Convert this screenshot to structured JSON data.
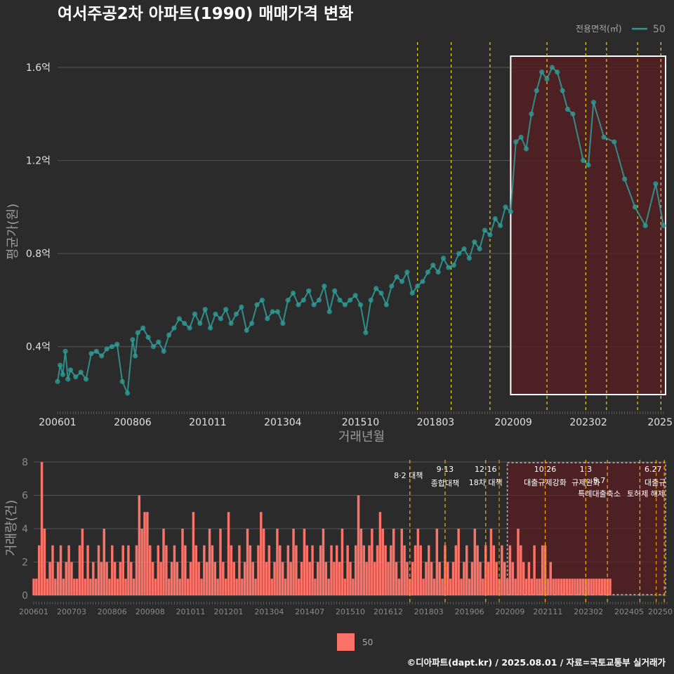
{
  "title": "여서주공2차 아파트(1990) 매매가격 변화",
  "footer": "©디아파트(dapt.kr) / 2025.08.01 / 자료=국토교통부 실거래가",
  "colors": {
    "line": "#2f9a95",
    "bar": "#fa7268",
    "policy": "#e8d21c",
    "policy_low": "#f4a000",
    "box_fill": "#5a1f22",
    "grid": "#555555"
  },
  "chart_data": [
    {
      "type": "line",
      "title": "여서주공2차 아파트(1990) 매매가격 변화",
      "xlabel": "거래년월",
      "ylabel": "평균가(원)",
      "legend": {
        "title": "전용면적(㎡)",
        "entries": [
          "50"
        ],
        "placement": "top-right"
      },
      "x_ticks": [
        "200601",
        "200806",
        "201011",
        "201304",
        "201510",
        "201803",
        "202009",
        "202302",
        "2025"
      ],
      "y_ticks": [
        "0.4억",
        "0.8억",
        "1.2억",
        "1.6억"
      ],
      "y_tick_values": [
        0.4,
        0.8,
        1.2,
        1.6
      ],
      "xlim": [
        "2006-01",
        "2025-07"
      ],
      "ylim": [
        0.2,
        1.66
      ],
      "unit": "억원",
      "series": [
        {
          "name": "50",
          "points": [
            [
              "2006-01",
              0.25
            ],
            [
              "2006-02",
              0.32
            ],
            [
              "2006-03",
              0.28
            ],
            [
              "2006-04",
              0.38
            ],
            [
              "2006-05",
              0.26
            ],
            [
              "2006-06",
              0.3
            ],
            [
              "2006-08",
              0.27
            ],
            [
              "2006-10",
              0.29
            ],
            [
              "2006-12",
              0.26
            ],
            [
              "2007-02",
              0.37
            ],
            [
              "2007-04",
              0.38
            ],
            [
              "2007-06",
              0.36
            ],
            [
              "2007-08",
              0.39
            ],
            [
              "2007-10",
              0.4
            ],
            [
              "2007-12",
              0.41
            ],
            [
              "2008-02",
              0.25
            ],
            [
              "2008-04",
              0.2
            ],
            [
              "2008-06",
              0.43
            ],
            [
              "2008-07",
              0.36
            ],
            [
              "2008-08",
              0.46
            ],
            [
              "2008-10",
              0.48
            ],
            [
              "2008-12",
              0.44
            ],
            [
              "2009-02",
              0.4
            ],
            [
              "2009-04",
              0.42
            ],
            [
              "2009-06",
              0.38
            ],
            [
              "2009-08",
              0.45
            ],
            [
              "2009-10",
              0.48
            ],
            [
              "2009-12",
              0.52
            ],
            [
              "2010-02",
              0.5
            ],
            [
              "2010-04",
              0.48
            ],
            [
              "2010-06",
              0.54
            ],
            [
              "2010-08",
              0.5
            ],
            [
              "2010-10",
              0.56
            ],
            [
              "2010-12",
              0.48
            ],
            [
              "2011-02",
              0.54
            ],
            [
              "2011-04",
              0.52
            ],
            [
              "2011-06",
              0.56
            ],
            [
              "2011-08",
              0.5
            ],
            [
              "2011-10",
              0.54
            ],
            [
              "2011-12",
              0.57
            ],
            [
              "2012-02",
              0.47
            ],
            [
              "2012-04",
              0.5
            ],
            [
              "2012-06",
              0.58
            ],
            [
              "2012-08",
              0.6
            ],
            [
              "2012-10",
              0.52
            ],
            [
              "2012-12",
              0.55
            ],
            [
              "2013-02",
              0.55
            ],
            [
              "2013-04",
              0.5
            ],
            [
              "2013-06",
              0.6
            ],
            [
              "2013-08",
              0.63
            ],
            [
              "2013-10",
              0.58
            ],
            [
              "2013-12",
              0.6
            ],
            [
              "2014-02",
              0.64
            ],
            [
              "2014-04",
              0.58
            ],
            [
              "2014-06",
              0.6
            ],
            [
              "2014-08",
              0.66
            ],
            [
              "2014-10",
              0.55
            ],
            [
              "2014-12",
              0.64
            ],
            [
              "2015-02",
              0.6
            ],
            [
              "2015-04",
              0.58
            ],
            [
              "2015-06",
              0.6
            ],
            [
              "2015-08",
              0.62
            ],
            [
              "2015-10",
              0.58
            ],
            [
              "2015-12",
              0.46
            ],
            [
              "2016-02",
              0.6
            ],
            [
              "2016-04",
              0.65
            ],
            [
              "2016-06",
              0.63
            ],
            [
              "2016-08",
              0.58
            ],
            [
              "2016-10",
              0.66
            ],
            [
              "2016-12",
              0.7
            ],
            [
              "2017-02",
              0.68
            ],
            [
              "2017-04",
              0.72
            ],
            [
              "2017-06",
              0.63
            ],
            [
              "2017-08",
              0.66
            ],
            [
              "2017-10",
              0.68
            ],
            [
              "2017-12",
              0.72
            ],
            [
              "2018-02",
              0.75
            ],
            [
              "2018-04",
              0.72
            ],
            [
              "2018-06",
              0.78
            ],
            [
              "2018-08",
              0.74
            ],
            [
              "2018-10",
              0.75
            ],
            [
              "2018-12",
              0.8
            ],
            [
              "2019-02",
              0.82
            ],
            [
              "2019-04",
              0.78
            ],
            [
              "2019-06",
              0.85
            ],
            [
              "2019-08",
              0.82
            ],
            [
              "2019-10",
              0.9
            ],
            [
              "2019-12",
              0.88
            ],
            [
              "2020-02",
              0.95
            ],
            [
              "2020-04",
              0.92
            ],
            [
              "2020-06",
              1.0
            ],
            [
              "2020-08",
              0.98
            ],
            [
              "2020-10",
              1.28
            ],
            [
              "2020-12",
              1.3
            ],
            [
              "2021-02",
              1.25
            ],
            [
              "2021-04",
              1.4
            ],
            [
              "2021-06",
              1.5
            ],
            [
              "2021-08",
              1.58
            ],
            [
              "2021-10",
              1.55
            ],
            [
              "2021-12",
              1.6
            ],
            [
              "2022-02",
              1.58
            ],
            [
              "2022-04",
              1.5
            ],
            [
              "2022-06",
              1.42
            ],
            [
              "2022-08",
              1.4
            ],
            [
              "2022-12",
              1.2
            ],
            [
              "2023-02",
              1.18
            ],
            [
              "2023-04",
              1.45
            ],
            [
              "2023-08",
              1.3
            ],
            [
              "2023-12",
              1.28
            ],
            [
              "2024-04",
              1.12
            ],
            [
              "2024-08",
              1.0
            ],
            [
              "2024-12",
              0.92
            ],
            [
              "2025-04",
              1.1
            ],
            [
              "2025-07",
              0.92
            ]
          ]
        }
      ]
    },
    {
      "type": "bar",
      "xlabel": "",
      "ylabel": "거래량(건)",
      "x_ticks": [
        "200601",
        "200703",
        "200806",
        "200908",
        "201011",
        "201201",
        "201304",
        "201407",
        "201510",
        "201612",
        "201803",
        "201906",
        "202009",
        "202111",
        "202302",
        "202405",
        "20250"
      ],
      "y_ticks": [
        "0",
        "2",
        "4",
        "6",
        "8"
      ],
      "y_tick_values": [
        0,
        2,
        4,
        6,
        8
      ],
      "ylim": [
        0,
        8.2
      ],
      "legend": {
        "entries": [
          "50"
        ],
        "placement": "bottom"
      },
      "series": [
        {
          "name": "50",
          "start": "2006-01",
          "values": [
            1,
            1,
            3,
            8,
            4,
            1,
            2,
            3,
            1,
            2,
            3,
            1,
            2,
            3,
            2,
            1,
            1,
            3,
            4,
            1,
            3,
            1,
            2,
            1,
            3,
            2,
            4,
            2,
            1,
            3,
            2,
            1,
            2,
            3,
            1,
            3,
            2,
            1,
            3,
            6,
            4,
            5,
            5,
            3,
            2,
            1,
            3,
            2,
            4,
            3,
            1,
            2,
            3,
            2,
            1,
            4,
            3,
            1,
            2,
            5,
            3,
            2,
            1,
            3,
            2,
            4,
            3,
            2,
            1,
            4,
            2,
            1,
            5,
            3,
            2,
            1,
            3,
            1,
            2,
            4,
            3,
            2,
            1,
            3,
            5,
            4,
            2,
            3,
            1,
            2,
            4,
            3,
            2,
            1,
            3,
            2,
            4,
            3,
            1,
            2,
            4,
            3,
            2,
            3,
            1,
            2,
            3,
            4,
            2,
            1,
            3,
            2,
            3,
            2,
            4,
            1,
            3,
            2,
            1,
            3,
            6,
            4,
            3,
            2,
            3,
            4,
            2,
            3,
            5,
            4,
            3,
            2,
            3,
            4,
            2,
            1,
            4,
            3,
            2,
            1,
            2,
            3,
            4,
            3,
            1,
            2,
            3,
            2,
            1,
            4,
            2,
            1,
            3,
            2,
            1,
            2,
            3,
            4,
            1,
            2,
            3,
            1,
            2,
            4,
            3,
            2,
            1,
            3,
            2,
            4,
            3,
            2,
            1,
            3,
            2,
            1,
            3,
            2,
            1,
            4,
            3,
            2,
            1,
            2,
            1,
            3,
            1,
            1,
            3,
            3,
            1,
            2,
            1,
            1,
            1,
            1,
            1,
            1,
            1,
            1,
            1,
            1,
            1,
            1,
            1,
            1,
            1,
            1,
            1,
            1,
            1,
            1,
            1,
            1
          ]
        }
      ]
    }
  ],
  "policies": [
    {
      "date": "2017-08",
      "label1": "",
      "label2": "8·2 대책"
    },
    {
      "date": "2018-09",
      "label1": "9·13",
      "label2": "종합대책"
    },
    {
      "date": "2019-12",
      "label1": "12·16",
      "label2": "18차 대책"
    },
    {
      "date": "2021-10",
      "label1": "10.26",
      "label2": "대출규제강화"
    },
    {
      "date": "2023-01",
      "label1": "1.3",
      "label2": "규제완화"
    },
    {
      "date": "2023-09",
      "label1": "9.7",
      "label2": "특례대출축소"
    },
    {
      "date": "2024-09",
      "label1": "",
      "label2": "토허제 해제"
    },
    {
      "date": "2025-06",
      "label1": "6.27",
      "label2": "대출규"
    }
  ],
  "policy_extra": [
    {
      "date": "2020-05",
      "low": true
    },
    {
      "date": "2025-03",
      "low": true
    }
  ]
}
